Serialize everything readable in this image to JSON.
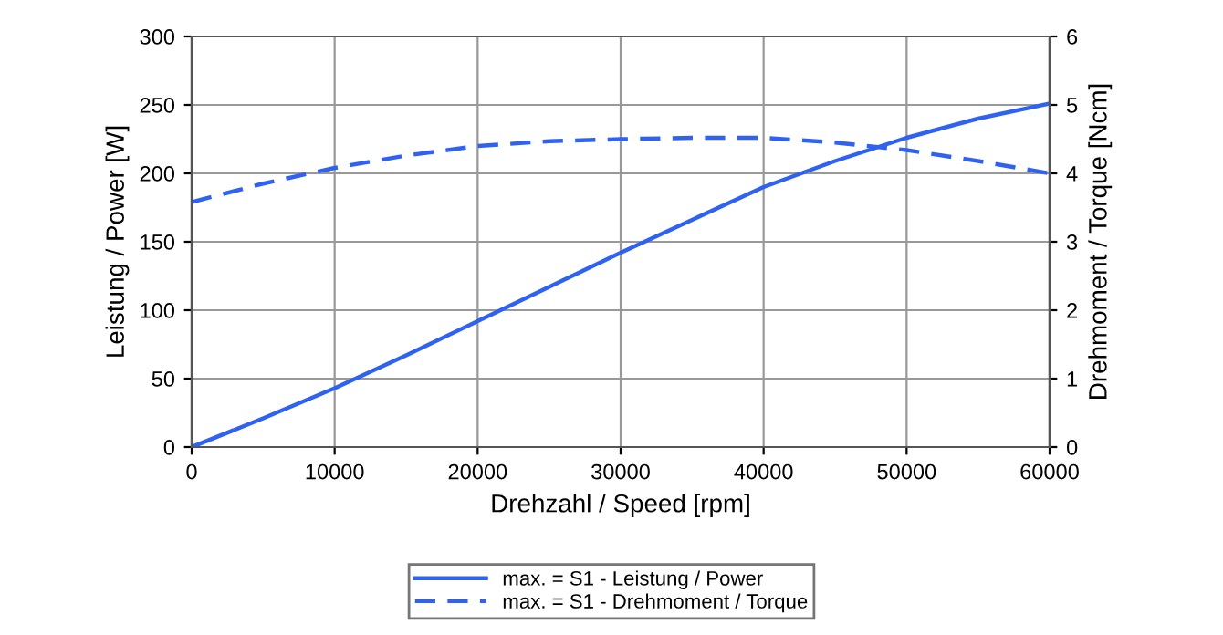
{
  "chart_data": {
    "type": "line",
    "xlabel": "Drehzahl / Speed [rpm]",
    "ylabel": "Leistung / Power [W]",
    "y2label": "Drehmoment / Torque [Ncm]",
    "x": [
      0,
      5000,
      10000,
      15000,
      20000,
      25000,
      30000,
      35000,
      40000,
      45000,
      50000,
      55000,
      60000
    ],
    "series": [
      {
        "name": "max. = S1 - Leistung / Power",
        "color": "#2f62f0",
        "line_style": "solid",
        "values": [
          0,
          21,
          43,
          67,
          92,
          117,
          142,
          166,
          190,
          209,
          226,
          240,
          251
        ]
      },
      {
        "name": "max. = S1 - Drehmoment / Torque",
        "color": "#2f62f0",
        "line_style": "dashed",
        "axis": "y2",
        "values": [
          3.58,
          3.85,
          4.08,
          4.26,
          4.4,
          4.47,
          4.5,
          4.52,
          4.52,
          4.45,
          4.34,
          4.18,
          4.0
        ]
      }
    ],
    "xlim": [
      0,
      60000
    ],
    "xticks": [
      0,
      10000,
      20000,
      30000,
      40000,
      50000,
      60000
    ],
    "ylim": [
      0,
      300
    ],
    "yticks": [
      0,
      50,
      100,
      150,
      200,
      250,
      300
    ],
    "y2lim": [
      0,
      6
    ],
    "y2ticks": [
      0,
      1,
      2,
      3,
      4,
      5,
      6
    ],
    "grid": true,
    "legend": "bottom",
    "marker": "none"
  }
}
